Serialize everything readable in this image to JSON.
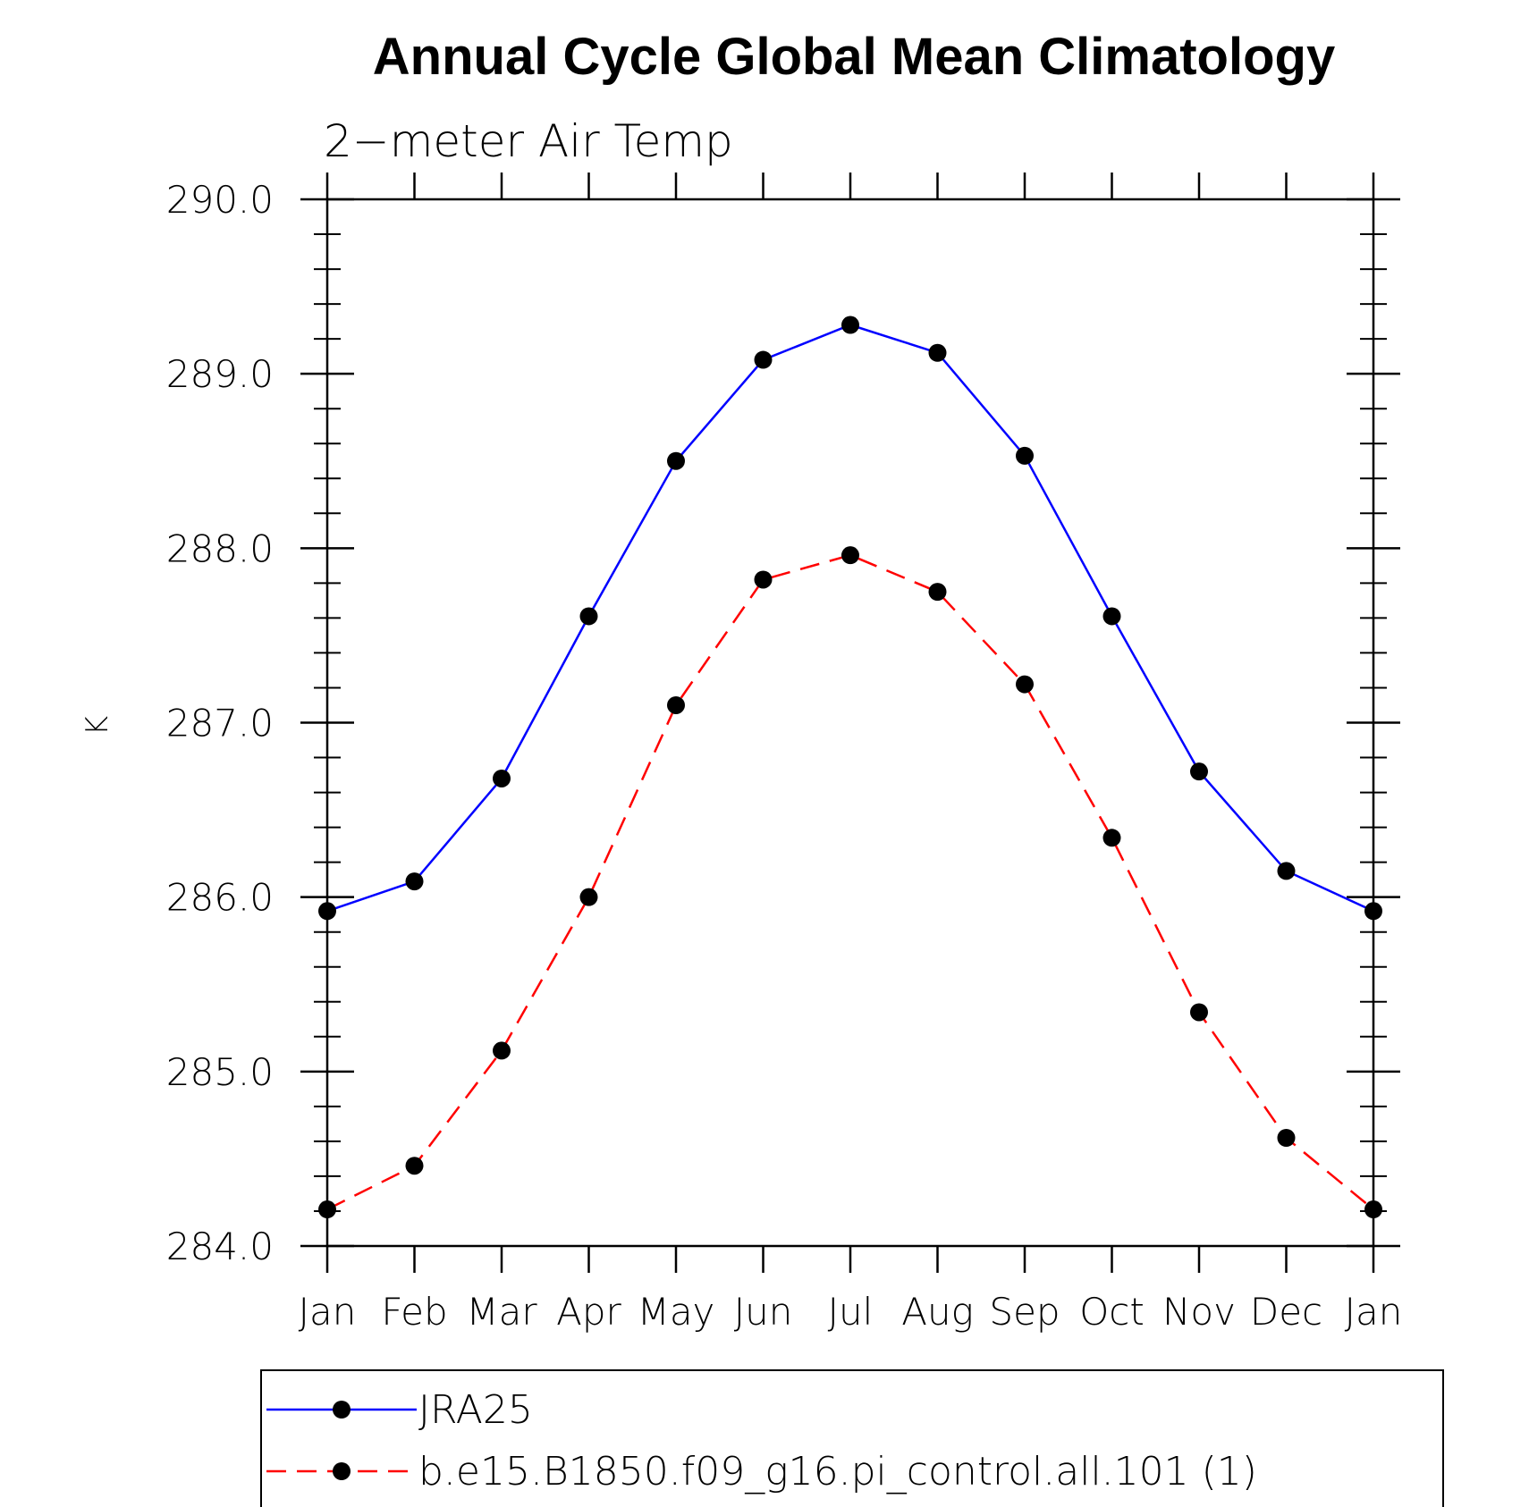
{
  "chart_data": {
    "type": "line",
    "title": "Annual Cycle Global Mean Climatology",
    "subtitle": "2−meter Air Temp",
    "xlabel": "",
    "ylabel": "K",
    "categories": [
      "Jan",
      "Feb",
      "Mar",
      "Apr",
      "May",
      "Jun",
      "Jul",
      "Aug",
      "Sep",
      "Oct",
      "Nov",
      "Dec",
      "Jan"
    ],
    "ylim": [
      284.0,
      290.0
    ],
    "yticks": [
      "284.0",
      "285.0",
      "286.0",
      "287.0",
      "288.0",
      "289.0",
      "290.0"
    ],
    "grid": false,
    "legend_position": "bottom",
    "series": [
      {
        "name": "JRA25",
        "color": "#0000ff",
        "line_style": "solid",
        "marker": "circle",
        "values": [
          285.92,
          286.09,
          286.68,
          287.61,
          288.5,
          289.08,
          289.28,
          289.12,
          288.53,
          287.61,
          286.72,
          286.15,
          285.92
        ]
      },
      {
        "name": "b.e15.B1850.f09_g16.pi_control.all.101 (1)",
        "color": "#ff0000",
        "line_style": "dashed",
        "marker": "circle",
        "values": [
          284.21,
          284.46,
          285.12,
          286.0,
          287.1,
          287.82,
          287.96,
          287.75,
          287.22,
          286.34,
          285.34,
          284.62,
          284.21
        ]
      }
    ]
  }
}
